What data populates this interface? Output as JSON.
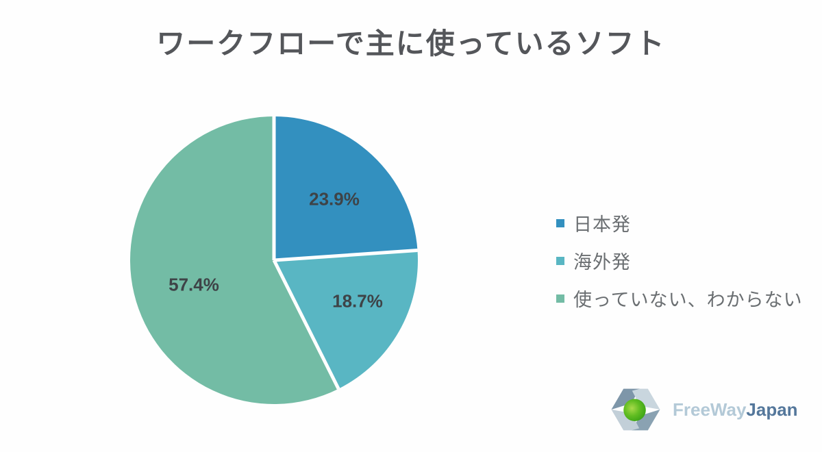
{
  "title": "ワークフローで主に使っているソフト",
  "chart_data": {
    "type": "pie",
    "title": "ワークフローで主に使っているソフト",
    "categories": [
      "日本発",
      "海外発",
      "使っていない、わからない"
    ],
    "values": [
      23.9,
      18.7,
      57.4
    ],
    "labels": [
      "23.9%",
      "18.7%",
      "57.4%"
    ],
    "colors": [
      "#3390bf",
      "#59b6c3",
      "#73bca5"
    ],
    "start_angle_deg": -90,
    "direction": "clockwise",
    "slice_gap_color": "#ffffff",
    "legend_position": "right",
    "label_color": "#3e4347"
  },
  "legend": {
    "items": [
      {
        "label": "日本発",
        "color": "#3390bf"
      },
      {
        "label": "海外発",
        "color": "#59b6c3"
      },
      {
        "label": "使っていない、わからない",
        "color": "#73bca5"
      }
    ]
  },
  "logo": {
    "text_primary": "FreeWay",
    "text_secondary": "Japan",
    "primary_color": "#b3c9d7",
    "secondary_color": "#54779b",
    "icon_dark_color": "#7e96a9",
    "icon_light_color": "#c9d6de",
    "icon_sphere_color": "#4cb31e"
  }
}
